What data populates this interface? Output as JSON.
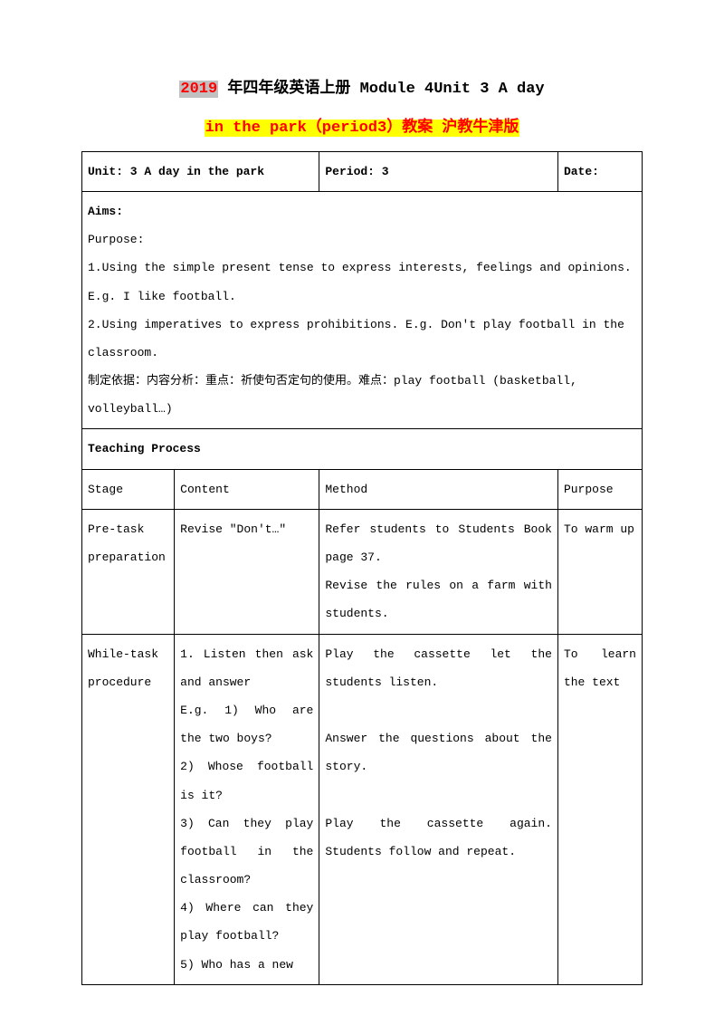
{
  "title": {
    "line1_gray_red": "2019",
    "line1_plain": " 年四年级英语上册 Module 4Unit 3 A day",
    "line2_yellow_red": "in the park（period3）教案 沪教牛津版"
  },
  "header_row": {
    "unit": "Unit: 3 A day in the park",
    "period": "Period: 3",
    "date": "Date:"
  },
  "aims": {
    "heading": "Aims:",
    "lines": [
      "Purpose:",
      "1.Using the simple present tense to express interests, feelings and opinions.",
      "E.g. I like football.",
      "2.Using imperatives to express prohibitions. E.g. Don't play football in the",
      "classroom.",
      "制定依据：内容分析：重点：祈使句否定句的使用。难点：play football (basketball,",
      "volleyball…)"
    ]
  },
  "process_heading": "Teaching Process",
  "cols": {
    "stage": "Stage",
    "content": "Content",
    "method": "Method",
    "purpose": "Purpose"
  },
  "rows": [
    {
      "stage": "Pre-task preparation",
      "content": "Revise \"Don't…\"",
      "method": "Refer students to Students Book page 37.\nRevise the rules on a farm with students.",
      "purpose": "To warm up"
    },
    {
      "stage": "While-task procedure",
      "content": "1. Listen then ask and answer\nE.g. 1) Who are the two boys?\n2) Whose football is it?\n3) Can they play football in the classroom?\n4) Where can they play football?\n5) Who has a new",
      "method": "Play the cassette let the students listen.\n\nAnswer the questions about the story.\n\n Play the cassette again. Students follow and repeat.",
      "purpose": "To learn the text"
    }
  ]
}
